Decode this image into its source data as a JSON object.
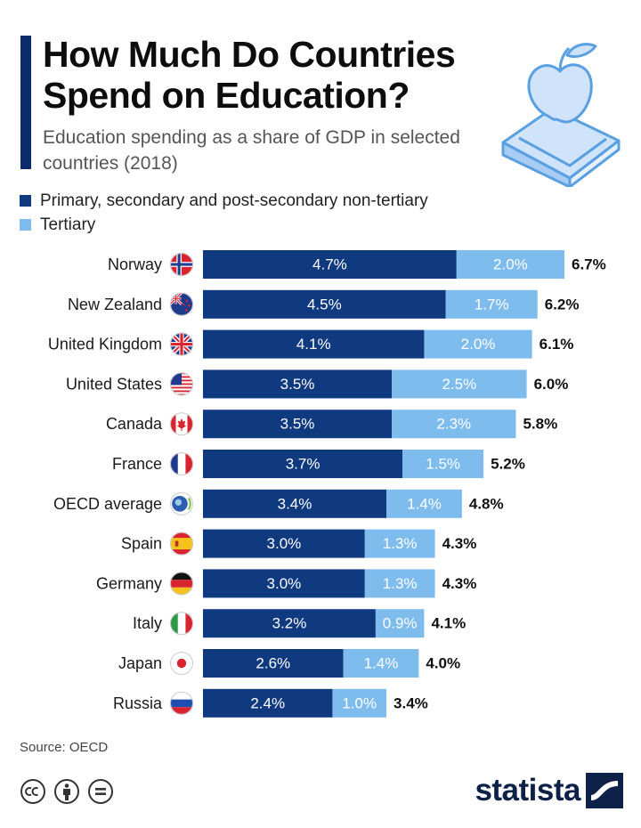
{
  "header": {
    "title": "How Much Do Countries Spend on Education?",
    "subtitle": "Education spending as a share of GDP in selected countries (2018)"
  },
  "legend": {
    "primary": "Primary, secondary and post-secondary non-tertiary",
    "tertiary": "Tertiary"
  },
  "colors": {
    "primary": "#103a80",
    "tertiary": "#7fbcee",
    "accent": "#0b2a6b",
    "brand": "#0d2149"
  },
  "illustration": {
    "icon": "apple-on-book-icon"
  },
  "chart_data": {
    "type": "bar",
    "orientation": "horizontal",
    "stacked": true,
    "categories": [
      "Norway",
      "New Zealand",
      "United Kingdom",
      "United States",
      "Canada",
      "France",
      "OECD average",
      "Spain",
      "Germany",
      "Italy",
      "Japan",
      "Russia"
    ],
    "flags": [
      "norway-flag-icon",
      "new-zealand-flag-icon",
      "united-kingdom-flag-icon",
      "united-states-flag-icon",
      "canada-flag-icon",
      "france-flag-icon",
      "oecd-logo-icon",
      "spain-flag-icon",
      "germany-flag-icon",
      "italy-flag-icon",
      "japan-flag-icon",
      "russia-flag-icon"
    ],
    "series": [
      {
        "name": "Primary, secondary and post-secondary non-tertiary",
        "values": [
          4.7,
          4.5,
          4.1,
          3.5,
          3.5,
          3.7,
          3.4,
          3.0,
          3.0,
          3.2,
          2.6,
          2.4
        ],
        "labels": [
          "4.7%",
          "4.5%",
          "4.1%",
          "3.5%",
          "3.5%",
          "3.7%",
          "3.4%",
          "3.0%",
          "3.0%",
          "3.2%",
          "2.6%",
          "2.4%"
        ]
      },
      {
        "name": "Tertiary",
        "values": [
          2.0,
          1.7,
          2.0,
          2.5,
          2.3,
          1.5,
          1.4,
          1.3,
          1.3,
          0.9,
          1.4,
          1.0
        ],
        "labels": [
          "2.0%",
          "1.7%",
          "2.0%",
          "2.5%",
          "2.3%",
          "1.5%",
          "1.4%",
          "1.3%",
          "1.3%",
          "0.9%",
          "1.4%",
          "1.0%"
        ]
      }
    ],
    "totals": [
      6.7,
      6.2,
      6.1,
      6.0,
      5.8,
      5.2,
      4.8,
      4.3,
      4.3,
      4.1,
      4.0,
      3.4
    ],
    "total_labels": [
      "6.7%",
      "6.2%",
      "6.1%",
      "6.0%",
      "5.8%",
      "5.2%",
      "4.8%",
      "4.3%",
      "4.3%",
      "4.1%",
      "4.0%",
      "3.4%"
    ],
    "xlim": [
      0,
      6.7
    ],
    "grid": false,
    "legend_position": "top-left"
  },
  "footer": {
    "source": "Source: OECD",
    "license_icons": [
      "creative-commons-icon",
      "attribution-icon",
      "no-derivatives-icon"
    ],
    "brand": "statista",
    "brand_icon": "statista-logo-icon"
  }
}
